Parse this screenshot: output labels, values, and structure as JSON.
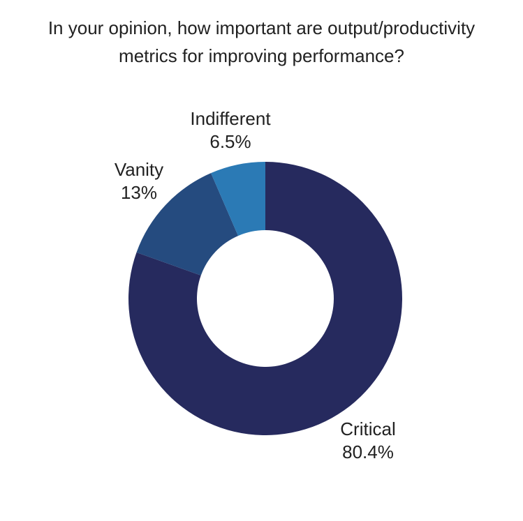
{
  "chart_data": {
    "type": "pie",
    "variant": "donut",
    "title": "In your opinion, how important are output/productivity metrics for improving performance?",
    "slices": [
      {
        "label": "Critical",
        "value": 80.4,
        "pct_label": "80.4%",
        "color": "#262A5E"
      },
      {
        "label": "Vanity",
        "value": 13,
        "pct_label": "13%",
        "color": "#254B7F"
      },
      {
        "label": "Indifferent",
        "value": 6.5,
        "pct_label": "6.5%",
        "color": "#2B7AB5"
      }
    ],
    "start_angle": "12 o'clock",
    "direction": "clockwise",
    "inner_radius_ratio": 0.5,
    "labels": "outside",
    "legend": "none",
    "background": "#FFFFFF"
  }
}
